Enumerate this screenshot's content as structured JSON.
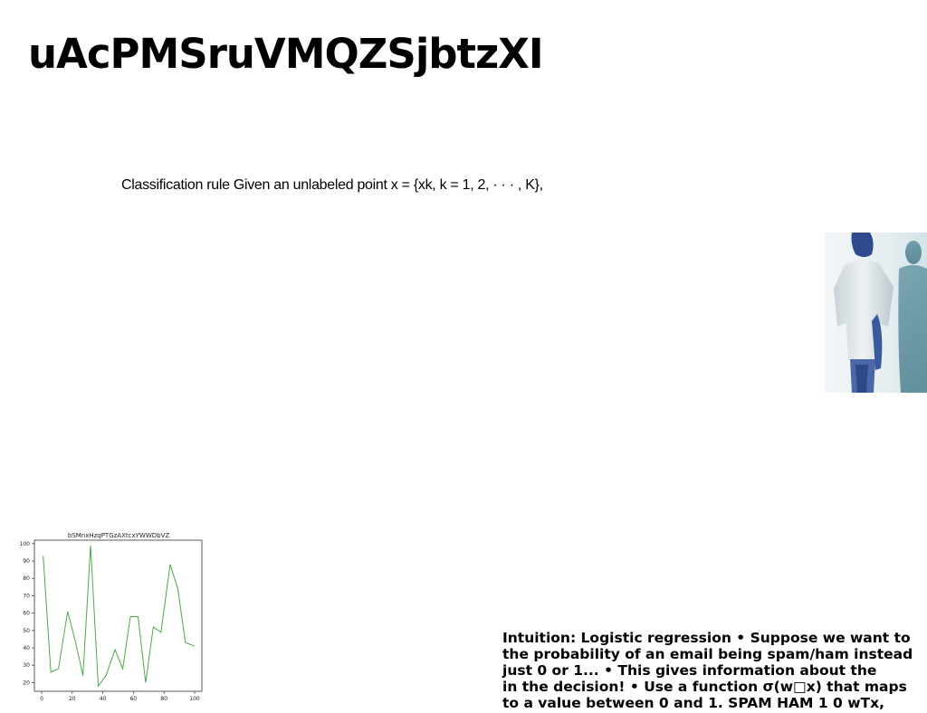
{
  "slide": {
    "title": "uAcPMSruVMQZSjbtzXI",
    "rule_text": "Classification rule Given an unlabeled point x = {xk, k = 1, 2, · · · , K},",
    "intuition_lines": [
      "Intuition: Logistic regression • Suppose we want to",
      "the probability of an email being spam/ham instead",
      "just 0 or 1... • This gives information about the",
      "in the decision! • Use a function σ(w□x) that maps",
      "to a value between 0 and 1. SPAM HAM 1 0 wTx,"
    ]
  },
  "photo": {
    "icon": "person-in-white-shirt-photo"
  },
  "chart_data": {
    "type": "line",
    "title": "bSMnxHzqPTGzAXtcxYWWDbVZ",
    "xlim": [
      0,
      100
    ],
    "ylim": [
      15,
      102
    ],
    "xticks": [
      0,
      20,
      40,
      60,
      80,
      100
    ],
    "yticks": [
      20,
      30,
      40,
      50,
      60,
      70,
      80,
      90,
      100
    ],
    "series": [
      {
        "color": "#4aa84a",
        "x": [
          1,
          6,
          11,
          17,
          22,
          27,
          32,
          37,
          42,
          48,
          53,
          58,
          63,
          68,
          73,
          78,
          84,
          89,
          94,
          100
        ],
        "y": [
          93,
          26,
          28,
          61,
          44,
          24,
          99,
          18,
          24,
          39,
          28,
          58,
          58,
          20,
          52,
          49,
          88,
          74,
          43,
          41
        ]
      }
    ]
  }
}
